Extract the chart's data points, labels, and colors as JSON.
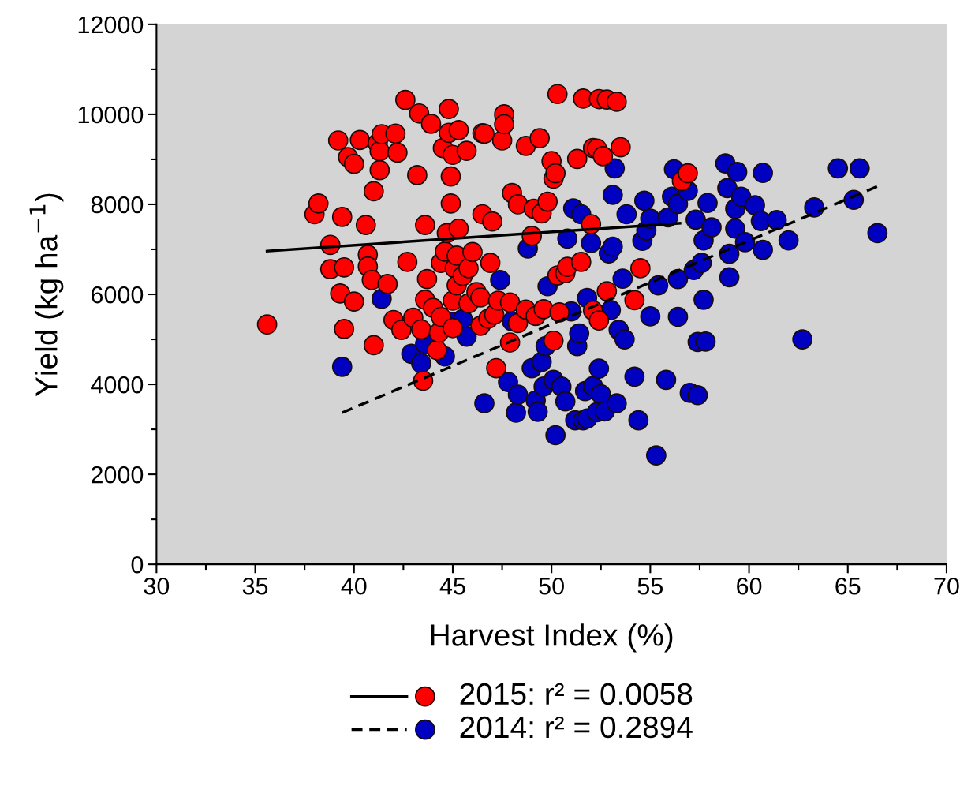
{
  "chart_data": {
    "type": "scatter",
    "xlabel": "Harvest Index (%)",
    "ylabel": "Yield (kg ha$^{−1}$)",
    "xlim": [
      30,
      70
    ],
    "xticks": [
      30,
      35,
      40,
      45,
      50,
      55,
      60,
      65,
      70
    ],
    "ylim": [
      0,
      12000
    ],
    "yticks": [
      0,
      2000,
      4000,
      6000,
      8000,
      10000,
      12000
    ],
    "grid": false,
    "legend": "bottom",
    "series": [
      {
        "name": "2015: r² = 0.0058",
        "color": "#ff0000",
        "marker": "circle",
        "x": [
          35.6,
          38,
          38.2,
          38.8,
          38.8,
          39.2,
          39.3,
          39.4,
          39.5,
          39.5,
          39.7,
          40,
          40,
          40.3,
          40.6,
          40.7,
          40.7,
          40.9,
          41,
          41,
          41.2,
          41.3,
          41.3,
          41.4,
          41.7,
          42,
          42.1,
          42.2,
          42.4,
          42.6,
          42.7,
          43,
          43.2,
          43.3,
          43.4,
          43.5,
          43.6,
          43.6,
          43.7,
          43.9,
          44,
          44.2,
          44.3,
          44.4,
          44.4,
          44.5,
          44.6,
          44.7,
          44.8,
          44.8,
          44.9,
          44.9,
          45,
          45,
          45,
          45.1,
          45.2,
          45.2,
          45.3,
          45.3,
          45.5,
          45.7,
          45.8,
          45.8,
          46,
          46.2,
          46.4,
          46.4,
          46.5,
          46.5,
          46.6,
          46.8,
          46.9,
          47,
          47.1,
          47.3,
          47.2,
          47.5,
          47.6,
          47.6,
          47.9,
          47.9,
          48,
          48.3,
          48.3,
          48.7,
          48.7,
          49,
          49.1,
          49.2,
          49.4,
          49.5,
          49.6,
          49.8,
          50,
          50.1,
          50.1,
          50.2,
          50.3,
          50.3,
          50.4,
          50.7,
          50.8,
          51.3,
          51.5,
          51.6,
          52,
          52.1,
          52.1,
          52.3,
          52.4,
          52.4,
          52.6,
          52.8,
          52.8,
          53.3,
          53.5,
          54.2,
          54.5,
          56.6,
          56.9
        ],
        "values": [
          5330,
          7780,
          8020,
          7100,
          6560,
          9420,
          6020,
          7720,
          5230,
          6600,
          9050,
          8900,
          5840,
          9430,
          7540,
          6880,
          6620,
          6320,
          4870,
          8290,
          9360,
          9180,
          8760,
          9560,
          6230,
          5430,
          9570,
          9150,
          5210,
          10320,
          6720,
          5480,
          8650,
          10020,
          5220,
          4080,
          7540,
          5880,
          6340,
          9790,
          5700,
          4760,
          5150,
          6700,
          5500,
          9250,
          6950,
          7360,
          10120,
          9590,
          8620,
          8020,
          9100,
          5860,
          5250,
          6580,
          6200,
          6860,
          9650,
          7460,
          6410,
          9190,
          5800,
          6580,
          6940,
          6050,
          5930,
          5300,
          7780,
          9580,
          9570,
          5460,
          6700,
          7620,
          5550,
          5860,
          4360,
          9420,
          10000,
          9780,
          4930,
          5820,
          8250,
          8000,
          5360,
          9300,
          5660,
          7300,
          7900,
          5520,
          9470,
          7800,
          5670,
          8060,
          8960,
          8570,
          4970,
          8690,
          6420,
          10450,
          5600,
          6470,
          6610,
          9010,
          6720,
          10350,
          7560,
          5640,
          9250,
          9240,
          5420,
          10340,
          9070,
          6070,
          10330,
          10280,
          9270,
          5870,
          6580,
          8520,
          8690
        ]
      },
      {
        "type": "line",
        "color": "#000000",
        "line_style": "solid",
        "marker": "none",
        "x": [
          35.6,
          56.5
        ],
        "values": [
          6960,
          7580
        ]
      },
      {
        "name": "2014: r² = 0.2894",
        "color": "#0000c0",
        "marker": "circle",
        "x": [
          39.4,
          41.4,
          42.9,
          43.4,
          43.6,
          44.2,
          44.6,
          45,
          45.5,
          45.7,
          46.6,
          47.4,
          47.8,
          48,
          48.2,
          48.3,
          48.8,
          49,
          49.2,
          49.3,
          49.5,
          49.6,
          49.7,
          49.8,
          50.1,
          50.2,
          50.5,
          50.7,
          50.8,
          51,
          51.1,
          51.2,
          51.3,
          51.4,
          51.5,
          51.6,
          51.7,
          51.8,
          51.8,
          52,
          52.1,
          52.3,
          52.4,
          52.5,
          52.7,
          52.9,
          53,
          53.1,
          53.1,
          53.2,
          53.3,
          53.4,
          53.6,
          53.7,
          53.8,
          54.2,
          54.4,
          54.6,
          54.7,
          54.8,
          55,
          55,
          55.3,
          55.4,
          55.8,
          55.9,
          56.1,
          56.2,
          56.4,
          56.4,
          56.4,
          56.9,
          57,
          57.2,
          57.3,
          57.4,
          57.4,
          57.6,
          57.7,
          57.7,
          57.8,
          57.9,
          58.1,
          58.8,
          58.9,
          59,
          59,
          59.3,
          59.3,
          59.4,
          59.6,
          59.8,
          60.3,
          60.6,
          60.7,
          60.7,
          61.4,
          62,
          62.7,
          63.3,
          64.5,
          65.3,
          65.6,
          66.5
        ],
        "values": [
          4390,
          5900,
          4680,
          4470,
          4900,
          null,
          4620,
          5390,
          5450,
          5060,
          3580,
          6320,
          4050,
          5400,
          3370,
          3770,
          7020,
          4360,
          3640,
          3390,
          4500,
          3950,
          4850,
          6180,
          4100,
          2870,
          3950,
          3620,
          7240,
          5620,
          7910,
          3200,
          4850,
          5130,
          7780,
          3200,
          3850,
          5920,
          3240,
          7140,
          3960,
          3380,
          4350,
          3780,
          3400,
          6910,
          5650,
          8210,
          7060,
          8800,
          3580,
          5210,
          6350,
          5000,
          7780,
          4170,
          3200,
          7190,
          8080,
          7420,
          7680,
          5510,
          2420,
          6200,
          4100,
          7710,
          8170,
          8780,
          8010,
          6340,
          5500,
          8300,
          3810,
          6540,
          7660,
          3760,
          4940,
          6700,
          5880,
          7200,
          4950,
          8030,
          7490,
          8910,
          8360,
          6380,
          6900,
          7900,
          7460,
          8720,
          8170,
          7160,
          7980,
          7630,
          8700,
          6990,
          7650,
          7200,
          5000,
          7930,
          8800,
          8100,
          8800,
          7360
        ]
      },
      {
        "type": "line",
        "color": "#000000",
        "line_style": "dashed",
        "marker": "none",
        "x": [
          39.4,
          66.5
        ],
        "values": [
          3370,
          8400
        ]
      }
    ]
  }
}
